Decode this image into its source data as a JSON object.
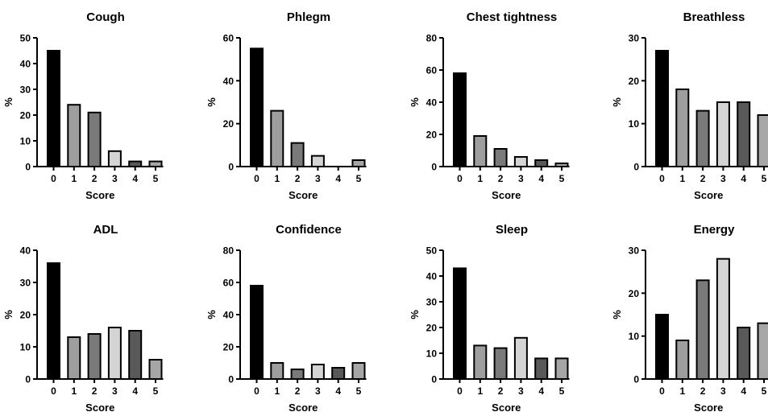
{
  "bar_colors": [
    "#000000",
    "#9e9e9e",
    "#7a7a7a",
    "#d4d4d4",
    "#595959",
    "#a6a6a6"
  ],
  "chart_data": [
    {
      "type": "bar",
      "title": "Cough",
      "xlabel": "Score",
      "ylabel": "%",
      "ylim": [
        0,
        50
      ],
      "yticks": [
        0,
        10,
        20,
        30,
        40,
        50
      ],
      "categories": [
        "0",
        "1",
        "2",
        "3",
        "4",
        "5"
      ],
      "values": [
        45,
        24,
        21,
        6,
        2,
        2
      ],
      "grid": false
    },
    {
      "type": "bar",
      "title": "Phlegm",
      "xlabel": "Score",
      "ylabel": "%",
      "ylim": [
        0,
        60
      ],
      "yticks": [
        0,
        20,
        40,
        60
      ],
      "categories": [
        "0",
        "1",
        "2",
        "3",
        "4",
        "5"
      ],
      "values": [
        55,
        26,
        11,
        5,
        0,
        3
      ],
      "grid": false
    },
    {
      "type": "bar",
      "title": "Chest tightness",
      "xlabel": "Score",
      "ylabel": "%",
      "ylim": [
        0,
        80
      ],
      "yticks": [
        0,
        20,
        40,
        60,
        80
      ],
      "categories": [
        "0",
        "1",
        "2",
        "3",
        "4",
        "5"
      ],
      "values": [
        58,
        19,
        11,
        6,
        4,
        2
      ],
      "grid": false
    },
    {
      "type": "bar",
      "title": "Breathless",
      "xlabel": "Score",
      "ylabel": "%",
      "ylim": [
        0,
        30
      ],
      "yticks": [
        0,
        10,
        20,
        30
      ],
      "categories": [
        "0",
        "1",
        "2",
        "3",
        "4",
        "5"
      ],
      "values": [
        27,
        18,
        13,
        15,
        15,
        12
      ],
      "grid": false
    },
    {
      "type": "bar",
      "title": "ADL",
      "xlabel": "Score",
      "ylabel": "%",
      "ylim": [
        0,
        40
      ],
      "yticks": [
        0,
        10,
        20,
        30,
        40
      ],
      "categories": [
        "0",
        "1",
        "2",
        "3",
        "4",
        "5"
      ],
      "values": [
        36,
        13,
        14,
        16,
        15,
        6
      ],
      "grid": false
    },
    {
      "type": "bar",
      "title": "Confidence",
      "xlabel": "Score",
      "ylabel": "%",
      "ylim": [
        0,
        80
      ],
      "yticks": [
        0,
        20,
        40,
        60,
        80
      ],
      "categories": [
        "0",
        "1",
        "2",
        "3",
        "4",
        "5"
      ],
      "values": [
        58,
        10,
        6,
        9,
        7,
        10
      ],
      "grid": false
    },
    {
      "type": "bar",
      "title": "Sleep",
      "xlabel": "Score",
      "ylabel": "%",
      "ylim": [
        0,
        50
      ],
      "yticks": [
        0,
        10,
        20,
        30,
        40,
        50
      ],
      "categories": [
        "0",
        "1",
        "2",
        "3",
        "4",
        "5"
      ],
      "values": [
        43,
        13,
        12,
        16,
        8,
        8
      ],
      "grid": false
    },
    {
      "type": "bar",
      "title": "Energy",
      "xlabel": "Score",
      "ylabel": "%",
      "ylim": [
        0,
        30
      ],
      "yticks": [
        0,
        10,
        20,
        30
      ],
      "categories": [
        "0",
        "1",
        "2",
        "3",
        "4",
        "5"
      ],
      "values": [
        15,
        9,
        23,
        28,
        12,
        13
      ],
      "grid": false
    }
  ]
}
